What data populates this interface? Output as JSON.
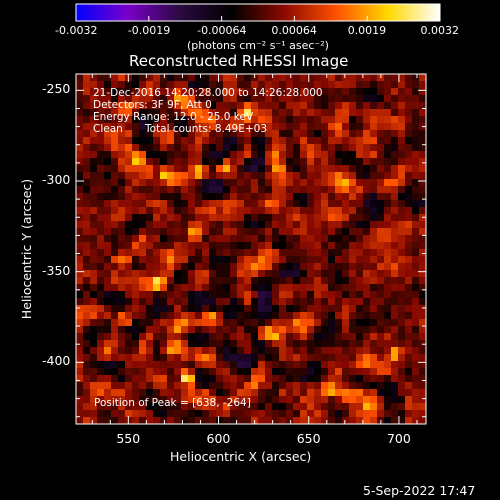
{
  "chart_data": {
    "type": "heatmap",
    "title": "Reconstructed RHESSI Image",
    "xlabel": "Heliocentric X (arcsec)",
    "ylabel": "Heliocentric Y (arcsec)",
    "xlim": [
      521,
      715
    ],
    "ylim": [
      -434,
      -241
    ],
    "xticks": [
      "550",
      "600",
      "650",
      "700"
    ],
    "yticks": [
      "-250",
      "-300",
      "-350",
      "-400"
    ],
    "xtick_values": [
      550,
      600,
      650,
      700
    ],
    "ytick_values": [
      -250,
      -300,
      -350,
      -400
    ],
    "colorbar": {
      "range": [
        -0.0032,
        0.0032
      ],
      "tick_labels": [
        "-0.0032",
        "-0.0019",
        "-0.00064",
        "0.00064",
        "0.0019",
        "0.0032"
      ],
      "unit_label": "(photons cm⁻² s⁻¹ asec⁻²)",
      "colormap": [
        "#0000ff",
        "#7a00c8",
        "#2a0a40",
        "#000000",
        "#8a0a00",
        "#ff5000",
        "#ffd800",
        "#ffffff"
      ]
    },
    "annotations": {
      "time_range": "21-Dec-2016 14:20:28.000 to 14:26:28.000",
      "detectors": "Detectors: 3F 9F, Att 0",
      "energy": "Energy Range: 12.0 - 25.0 keV",
      "method": "Clean",
      "counts": "Total counts: 8.49E+03",
      "peak": "Position of Peak = [638, -264]"
    }
  },
  "footer": {
    "timestamp": "5-Sep-2022 17:47"
  }
}
